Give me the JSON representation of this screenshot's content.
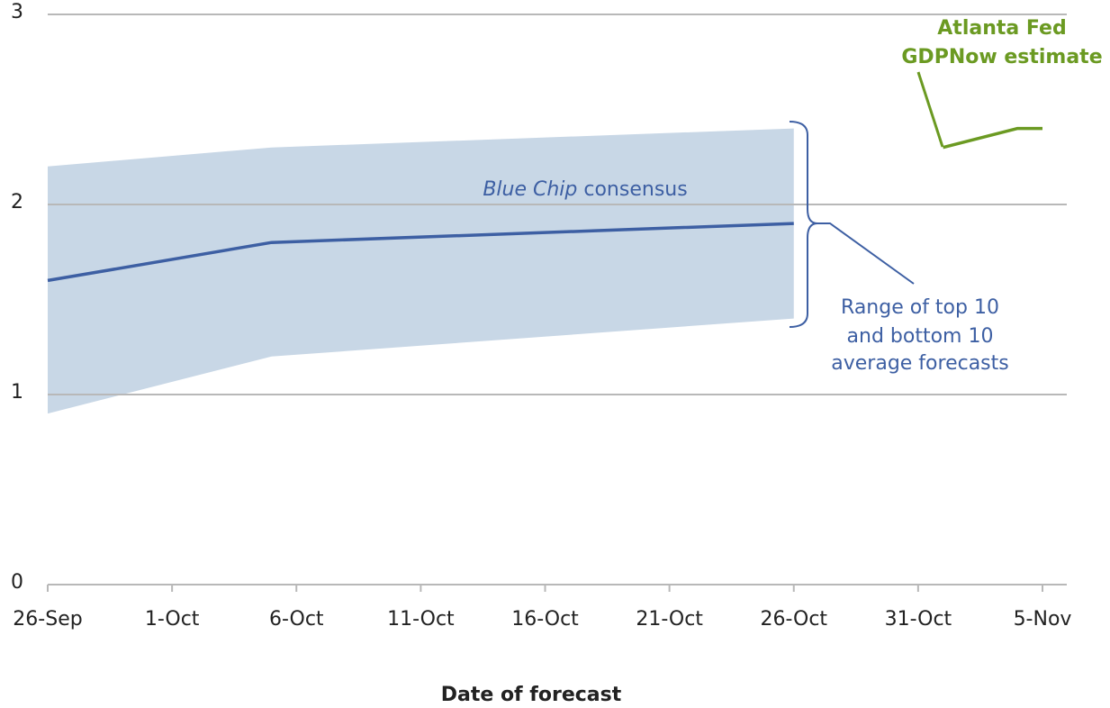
{
  "chart_data": {
    "type": "line",
    "x_label": "Date of forecast",
    "xlim": [
      "26-Sep",
      "5-Nov"
    ],
    "xticks": [
      "26-Sep",
      "1-Oct",
      "6-Oct",
      "11-Oct",
      "16-Oct",
      "21-Oct",
      "26-Oct",
      "31-Oct",
      "5-Nov"
    ],
    "ylim": [
      0,
      3
    ],
    "yticks": [
      0,
      1,
      2,
      3
    ],
    "grid": true,
    "band": {
      "x": [
        "26-Sep",
        "5-Oct",
        "26-Oct"
      ],
      "low": [
        0.9,
        1.2,
        1.4
      ],
      "high": [
        2.2,
        2.3,
        2.4
      ],
      "color": "#c8d7e6"
    },
    "series": [
      {
        "x": [
          "26-Sep",
          "5-Oct",
          "26-Oct"
        ],
        "values": [
          1.6,
          1.8,
          1.9
        ],
        "color": "#3d5fa3"
      },
      {
        "x": [
          "1-Nov",
          "4-Nov",
          "5-Nov"
        ],
        "values": [
          2.3,
          2.4,
          2.4
        ],
        "color": "#6b9a22"
      }
    ],
    "annotations": {
      "consensus": {
        "italic": "Blue Chip",
        "text": "consensus"
      },
      "range": [
        "Range of top 10",
        "and bottom 10",
        "average forecasts"
      ],
      "gdpnow": [
        "Atlanta Fed",
        "GDPNow estimate"
      ]
    }
  }
}
